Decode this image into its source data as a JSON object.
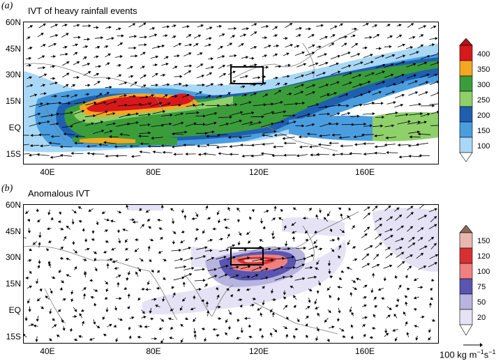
{
  "figure": {
    "panel_a": {
      "label": "(a)",
      "title": "IVT of heavy rainfall events",
      "y_ticks": [
        "60N",
        "45N",
        "30N",
        "15N",
        "EQ",
        "15S"
      ],
      "x_ticks": [
        "40E",
        "80E",
        "120E",
        "160E"
      ],
      "colorbar": {
        "labels": [
          "400",
          "350",
          "300",
          "250",
          "200",
          "150",
          "100"
        ],
        "colors": [
          "#d7191c",
          "#f5a623",
          "#3a9d3a",
          "#8fd06b",
          "#1f5fb0",
          "#4a9ee0",
          "#a8d8f5"
        ]
      }
    },
    "panel_b": {
      "label": "(b)",
      "title": "Anomalous IVT",
      "y_ticks": [
        "60N",
        "45N",
        "30N",
        "15N",
        "EQ",
        "15S"
      ],
      "x_ticks": [
        "40E",
        "80E",
        "120E",
        "160E"
      ],
      "colorbar": {
        "labels": [
          "150",
          "120",
          "100",
          "75",
          "50",
          "20"
        ],
        "colors": [
          "#8c6a5a",
          "#e8b8b0",
          "#d73030",
          "#f08080",
          "#5a55b0",
          "#b8b4e0",
          "#e4e2f4"
        ]
      },
      "reference_vector": {
        "value": "100 kg m",
        "exp1": "−1",
        "unit2": "s",
        "exp2": "−1"
      }
    }
  }
}
